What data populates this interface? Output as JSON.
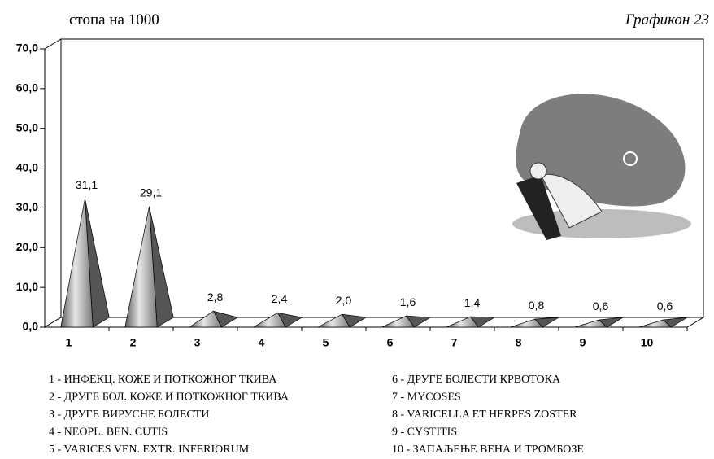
{
  "chart_data": {
    "type": "pyramid-bar",
    "subtitle": "стопа на 1000",
    "title": "Графикон 23",
    "categories": [
      "1",
      "2",
      "3",
      "4",
      "5",
      "6",
      "7",
      "8",
      "9",
      "10"
    ],
    "values": [
      31.1,
      29.1,
      2.8,
      2.4,
      2.0,
      1.6,
      1.4,
      0.8,
      0.6,
      0.6
    ],
    "value_labels": [
      "31,1",
      "29,1",
      "2,8",
      "2,4",
      "2,0",
      "1,6",
      "1,4",
      "0,8",
      "0,6",
      "0,6"
    ],
    "color": "#8c8c8c",
    "ylim": [
      0,
      70
    ],
    "yticks": [
      {
        "value": 0,
        "label": "0,0"
      },
      {
        "value": 10,
        "label": "10,0"
      },
      {
        "value": 20,
        "label": "20,0"
      },
      {
        "value": 30,
        "label": "30,0"
      },
      {
        "value": 40,
        "label": "40,0"
      },
      {
        "value": 50,
        "label": "50,0"
      },
      {
        "value": 60,
        "label": "60,0"
      },
      {
        "value": 70,
        "label": "70,0"
      }
    ],
    "legend": [
      "1 - ИНФЕКЦ. КОЖЕ И ПОТКОЖНОГ ТКИВА",
      "2 - ДРУГЕ БОЛ. КОЖЕ И ПОТКОЖНОГ ТКИВА",
      "3 - ДРУГЕ ВИРУСНЕ БОЛЕСТИ",
      "4 - NEOPL. BEN. CUTIS",
      "5 - VARICES VEN. EXTR. INFERIORUM",
      "6 - ДРУГЕ БОЛЕСТИ КРВОТОКА",
      "7 - MYCOSES",
      "8 - VARICELLA ET HERPES ZOSTER",
      "9 - CYSTITIS",
      "10 - ЗАПАЉЕЊЕ ВЕНА И ТРОМБОЗЕ"
    ]
  }
}
